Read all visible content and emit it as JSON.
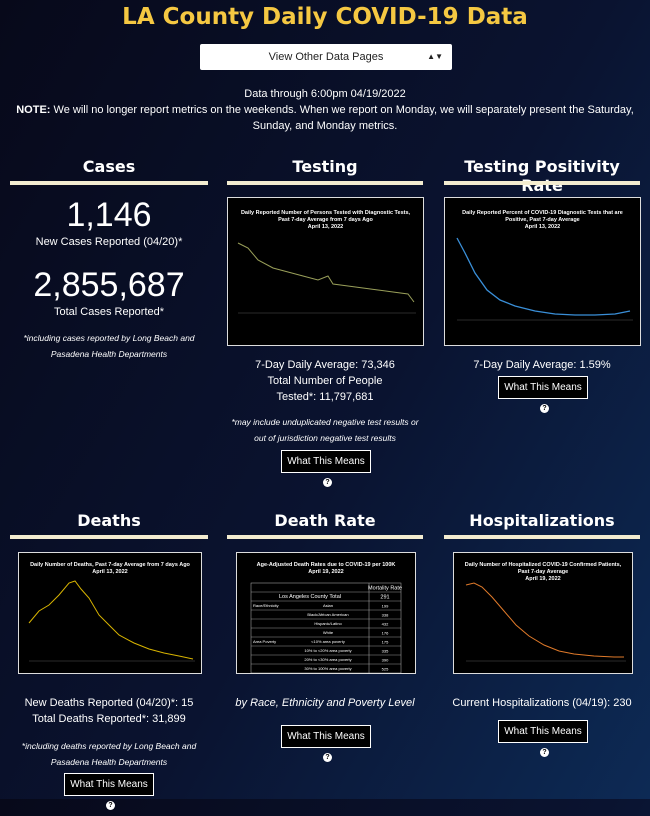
{
  "header": {
    "title": "LA County Daily COVID-19 Data",
    "dropdown": "View Other Data Pages",
    "data_through": "Data through 6:00pm 04/19/2022",
    "note_label": "NOTE:",
    "note": "We will no longer report metrics on the weekends. When we report on Monday, we will separately present the Saturday, Sunday, and Monday metrics."
  },
  "cases": {
    "title": "Cases",
    "new_value": "1,146",
    "new_label": "New Cases Reported (04/20)*",
    "total_value": "2,855,687",
    "total_label": "Total Cases Reported*",
    "footnote": "*including cases reported by Long Beach and Pasadena Health Departments"
  },
  "testing": {
    "title": "Testing",
    "chart_title": "Daily Reported Number of Persons Tested with Diagnostic Tests, Past 7-day Average from 7 days Ago",
    "chart_date": "April 13, 2022",
    "average": "7-Day Daily Average: 73,346",
    "total": "Total Number of People Tested*: 11,797,681",
    "footnote": "*may include unduplicated negative test results or out of jurisdiction negative test results",
    "button": "What This Means"
  },
  "positivity": {
    "title": "Testing Positivity Rate",
    "chart_title": "Daily Reported Percent of COVID-19 Diagnostic Tests that are Positive, Past 7-day Average",
    "chart_date": "April 13, 2022",
    "average": "7-Day Daily Average: 1.59%",
    "button": "What This Means"
  },
  "deaths": {
    "title": "Deaths",
    "chart_title": "Daily Number of Deaths, Past 7-day Average from 7 days Ago",
    "chart_date": "April 13, 2022",
    "new": "New Deaths Reported (04/20)*: 15",
    "total": "Total Deaths Reported*: 31,899",
    "footnote": "*including deaths reported by Long Beach and Pasadena Health Departments",
    "button": "What This Means"
  },
  "death_rate": {
    "title": "Death Rate",
    "table_title": "Age-Adjusted Death Rates due to COVID-19 per 100K",
    "table_date": "April 19, 2022",
    "column": "Mortality Rate",
    "rows": [
      [
        "",
        "Los Angeles County Total",
        291
      ],
      [
        "Race/Ethnicity",
        "Asian",
        199
      ],
      [
        "",
        "Black/African American",
        338
      ],
      [
        "",
        "Hispanic/Latino",
        432
      ],
      [
        "",
        "White",
        176
      ],
      [
        "Area Poverty",
        "<10% area poverty",
        175
      ],
      [
        "",
        "10% to <20% area poverty",
        335
      ],
      [
        "",
        "20% to <30% area poverty",
        390
      ],
      [
        "",
        "30% to 100% area poverty",
        525
      ]
    ],
    "caption": "by Race, Ethnicity and Poverty Level",
    "button": "What This Means"
  },
  "hospitalizations": {
    "title": "Hospitalizations",
    "chart_title": "Daily Number of Hospitalized COVID-19 Confirmed Patients, Past 7-day Average",
    "chart_date": "April 19, 2022",
    "current": "Current Hospitalizations (04/19): 230",
    "button": "What This Means"
  }
}
